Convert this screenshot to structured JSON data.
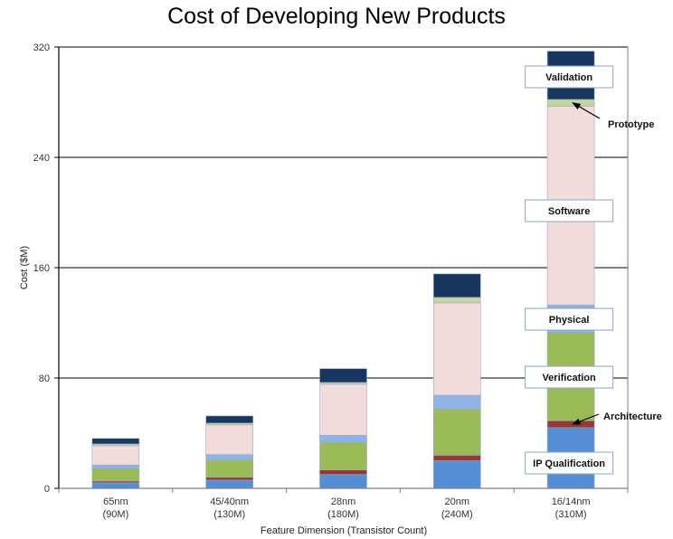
{
  "chart_data": {
    "type": "bar",
    "stacked": true,
    "title": "Cost of Developing New Products",
    "xlabel": "Feature Dimension (Transistor Count)",
    "ylabel": "Cost ($M)",
    "ylim": [
      0,
      320
    ],
    "yticks": [
      0,
      80,
      160,
      240,
      320
    ],
    "grid": true,
    "categories": [
      {
        "line1": "65nm",
        "line2": "(90M)"
      },
      {
        "line1": "45/40nm",
        "line2": "(130M)"
      },
      {
        "line1": "28nm",
        "line2": "(180M)"
      },
      {
        "line1": "20nm",
        "line2": "(240M)"
      },
      {
        "line1": "16/14nm",
        "line2": "(310M)"
      }
    ],
    "series": [
      {
        "name": "IP Qualification",
        "color": "#558ED5",
        "values": [
          4,
          6,
          10,
          20,
          44
        ]
      },
      {
        "name": "Architecture",
        "color": "#953735",
        "values": [
          1.3,
          2,
          3.3,
          4,
          5
        ]
      },
      {
        "name": "Verification",
        "color": "#9BBB59",
        "values": [
          9,
          12.5,
          20,
          33.5,
          64
        ]
      },
      {
        "name": "Physical",
        "color": "#8DB4E2",
        "values": [
          2.6,
          4,
          5.2,
          10,
          20
        ]
      },
      {
        "name": "Software",
        "color": "#F2DCDB",
        "values": [
          14,
          21.5,
          37,
          67,
          144
        ]
      },
      {
        "name": "Prototype",
        "color": "#C3D69B",
        "values": [
          1.3,
          1.3,
          1.3,
          4,
          5
        ]
      },
      {
        "name": "Validation",
        "color": "#17375E",
        "values": [
          4,
          5.2,
          10,
          17,
          35
        ]
      }
    ],
    "callouts": [
      {
        "label": "Validation",
        "style": "box",
        "series": "Validation"
      },
      {
        "label": "Prototype",
        "style": "arrow",
        "series": "Prototype"
      },
      {
        "label": "Software",
        "style": "box",
        "series": "Software"
      },
      {
        "label": "Physical",
        "style": "box",
        "series": "Physical"
      },
      {
        "label": "Verification",
        "style": "box",
        "series": "Verification"
      },
      {
        "label": "Architecture",
        "style": "arrow",
        "series": "Architecture"
      },
      {
        "label": "IP Qualification",
        "style": "box",
        "series": "IP Qualification"
      }
    ]
  }
}
